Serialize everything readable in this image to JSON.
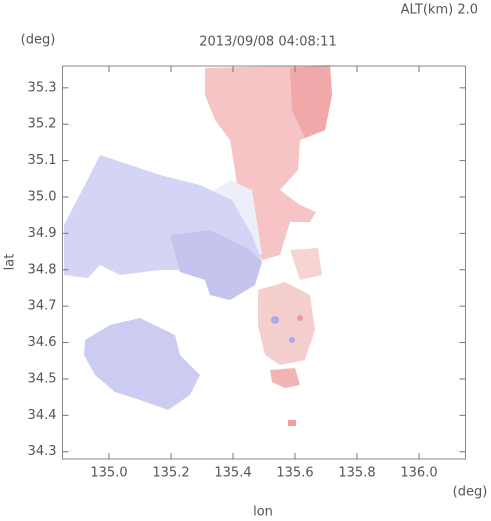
{
  "chart_data": {
    "type": "map",
    "title": "2013/09/08 04:08:11",
    "subtitle": "ALT(km) 2.0",
    "y_unit": "(deg)",
    "x_unit": "(deg)",
    "y_label": "lat",
    "x_label": "lon",
    "xlim": [
      134.85,
      136.15
    ],
    "ylim": [
      34.28,
      35.36
    ],
    "xticks": [
      {
        "value": 135,
        "label": "135.0"
      },
      135.2,
      135.4,
      135.6,
      135.8,
      {
        "value": 136,
        "label": "136.0"
      }
    ],
    "yticks": [
      34.3,
      34.4,
      34.5,
      34.6,
      34.7,
      34.8,
      34.9,
      {
        "value": 35,
        "label": "35.0"
      },
      35.1,
      35.2,
      35.3
    ]
  }
}
